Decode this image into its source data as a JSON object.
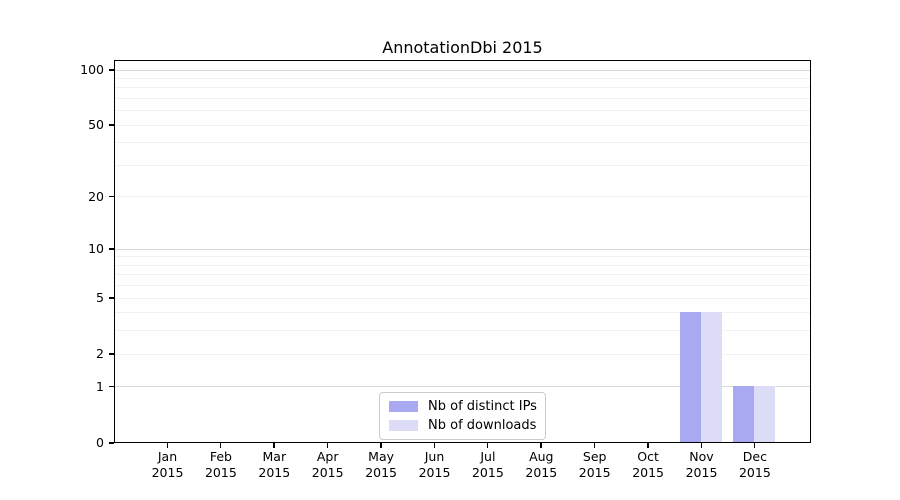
{
  "title": "AnnotationDbi 2015",
  "chart_data": {
    "type": "bar",
    "title": "AnnotationDbi 2015",
    "categories": [
      "Jan",
      "Feb",
      "Mar",
      "Apr",
      "May",
      "Jun",
      "Jul",
      "Aug",
      "Sep",
      "Oct",
      "Nov",
      "Dec"
    ],
    "category_year": "2015",
    "series": [
      {
        "name": "Nb of distinct IPs",
        "color": "#a9a9f2",
        "values": [
          0,
          0,
          0,
          0,
          0,
          0,
          0,
          0,
          0,
          0,
          4,
          1
        ]
      },
      {
        "name": "Nb of downloads",
        "color": "#dcdcf7",
        "values": [
          0,
          0,
          0,
          0,
          0,
          0,
          0,
          0,
          0,
          0,
          4,
          1
        ]
      }
    ],
    "xlabel": "",
    "ylabel": "",
    "y_axis": {
      "scale": "log10(1+x)",
      "tick_labels": [
        "0",
        "1",
        "2",
        "5",
        "10",
        "20",
        "50",
        "100"
      ],
      "tick_values": [
        0,
        1,
        2,
        5,
        10,
        20,
        50,
        100
      ],
      "major_grid_values": [
        1,
        10,
        100
      ],
      "minor_grid_values": [
        2,
        3,
        4,
        5,
        6,
        7,
        8,
        9,
        20,
        30,
        40,
        50,
        60,
        70,
        80,
        90
      ]
    },
    "legend": {
      "position": "inside-bottom-center",
      "entries": [
        "Nb of distinct IPs",
        "Nb of downloads"
      ]
    },
    "colors": {
      "axis": "#000000",
      "text": "#000000",
      "major_grid": "#d9d9d9",
      "minor_grid": "#f1f1f4",
      "background": "#ffffff",
      "legend_border": "#cccccc"
    },
    "grid": true
  }
}
